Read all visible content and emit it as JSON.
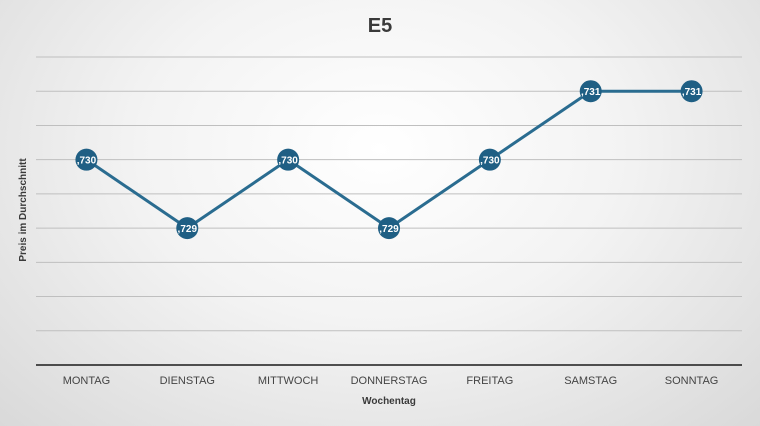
{
  "chart_data": {
    "type": "line",
    "title": "E5",
    "xlabel": "Wochentag",
    "ylabel": "Preis im Durchschnitt",
    "categories": [
      "MONTAG",
      "DIENSTAG",
      "MITTWOCH",
      "DONNERSTAG",
      "FREITAG",
      "SAMSTAG",
      "SONNTAG"
    ],
    "series": [
      {
        "values": [
          1.73,
          1.729,
          1.73,
          1.729,
          1.73,
          1.731,
          1.731
        ],
        "labels": [
          ",730",
          ",729",
          ",730",
          ",729",
          ",730",
          ",731",
          ",731"
        ]
      }
    ],
    "ylim": [
      1.727,
      1.7315
    ],
    "grid": true,
    "legend": "none",
    "colors": {
      "line": "#2a6c90",
      "marker": "#1f5f84",
      "gridline": "#bfbfbf",
      "axis": "#1a1a1a"
    }
  }
}
